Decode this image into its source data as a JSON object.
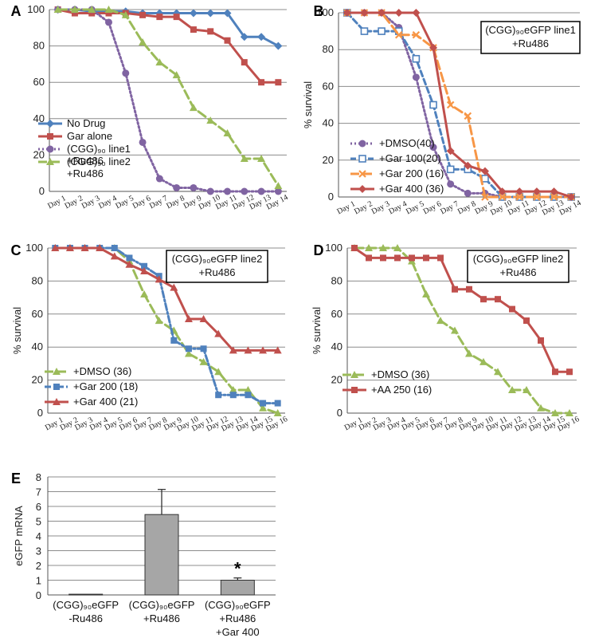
{
  "chart_data": [
    {
      "panel": "A",
      "type": "line",
      "x": [
        "Day 1",
        "Day 2",
        "Day 3",
        "Day 4",
        "Day 5",
        "Day 6",
        "Day 7",
        "Day 8",
        "Day 9",
        "Day 10",
        "Day 11",
        "Day 12",
        "Day 13",
        "Day 14"
      ],
      "ylabel": "",
      "ylim": [
        0,
        100
      ],
      "yticks": [
        0,
        20,
        40,
        60,
        80,
        100
      ],
      "grid": true,
      "legend": "bottom-left",
      "series": [
        {
          "name": "No Drug",
          "color": "#4f81bd",
          "dash": "solid",
          "marker": "diamond",
          "values": [
            100,
            100,
            99,
            99,
            99,
            98,
            98,
            98,
            98,
            98,
            98,
            85,
            85,
            80
          ]
        },
        {
          "name": "Gar alone",
          "color": "#c0504d",
          "dash": "solid",
          "marker": "square",
          "values": [
            100,
            98,
            98,
            98,
            98,
            97,
            96,
            96,
            89,
            88,
            83,
            71,
            60,
            60
          ]
        },
        {
          "name": "(CGG)₉₀ line1 +Ru486",
          "color": "#8064a2",
          "dash": "dot",
          "marker": "circle",
          "values": [
            100,
            100,
            100,
            93,
            65,
            27,
            7,
            2,
            2,
            0,
            0,
            0,
            0,
            0
          ]
        },
        {
          "name": "(CGG)₉₀ line2 +Ru486",
          "color": "#9bbb59",
          "dash": "longdash",
          "marker": "triangle",
          "values": [
            100,
            100,
            100,
            100,
            97,
            82,
            71,
            64,
            46,
            39,
            32,
            18,
            18,
            3
          ]
        }
      ]
    },
    {
      "panel": "B",
      "type": "line",
      "x": [
        "Day 1",
        "Day 2",
        "Day 3",
        "Day 4",
        "Day 5",
        "Day 6",
        "Day 7",
        "Day 8",
        "Day 9",
        "Day 10",
        "Day 11",
        "Day 12",
        "Day 13",
        "Day 14"
      ],
      "ylabel": "% survival",
      "ylim": [
        0,
        100
      ],
      "yticks": [
        0,
        20,
        40,
        60,
        80,
        100
      ],
      "grid": true,
      "legend": "bottom-left",
      "annotation": [
        "(CGG)₉₀eGFP line1",
        "+Ru486"
      ],
      "series": [
        {
          "name": "+DMSO(40)",
          "color": "#8064a2",
          "dash": "dot",
          "marker": "circle",
          "values": [
            100,
            100,
            100,
            92,
            65,
            27,
            7,
            2,
            2,
            0,
            0,
            0,
            0,
            0
          ]
        },
        {
          "name": "+Gar 100(20)",
          "color": "#4f81bd",
          "dash": "dash",
          "marker": "square-open",
          "values": [
            100,
            90,
            90,
            90,
            75,
            50,
            15,
            15,
            10,
            0,
            0,
            0,
            0,
            0
          ]
        },
        {
          "name": "+Gar 200 (16)",
          "color": "#f79646",
          "dash": "longdash",
          "marker": "x",
          "values": [
            100,
            100,
            100,
            88,
            88,
            81,
            50,
            44,
            0,
            0,
            0,
            0,
            0,
            0
          ]
        },
        {
          "name": "+Gar 400 (36)",
          "color": "#c0504d",
          "dash": "solid",
          "marker": "diamond",
          "values": [
            100,
            100,
            100,
            100,
            100,
            81,
            25,
            17,
            14,
            3,
            3,
            3,
            3,
            0
          ]
        }
      ]
    },
    {
      "panel": "C",
      "type": "line",
      "x": [
        "Day 1",
        "Day 2",
        "Day 3",
        "Day 4",
        "Day 5",
        "Day 6",
        "Day 7",
        "Day 8",
        "Day 9",
        "Day 10",
        "Day 11",
        "Day 12",
        "Day 13",
        "Day 14",
        "Day 15",
        "Day 16"
      ],
      "ylabel": "% survival",
      "ylim": [
        0,
        100
      ],
      "yticks": [
        0,
        20,
        40,
        60,
        80,
        100
      ],
      "grid": true,
      "legend": "bottom-left",
      "annotation": [
        "(CGG)₉₀eGFP line2",
        "+Ru486"
      ],
      "series": [
        {
          "name": "+DMSO (36)",
          "color": "#9bbb59",
          "dash": "longdash",
          "marker": "triangle",
          "values": [
            100,
            100,
            100,
            100,
            100,
            92,
            72,
            56,
            50,
            36,
            31,
            25,
            14,
            14,
            3,
            0
          ]
        },
        {
          "name": "+Gar 200 (18)",
          "color": "#4f81bd",
          "dash": "dashdot",
          "marker": "square",
          "values": [
            100,
            100,
            100,
            100,
            100,
            94,
            89,
            83,
            44,
            39,
            39,
            11,
            11,
            11,
            6,
            6
          ]
        },
        {
          "name": "+Gar 400 (21)",
          "color": "#c0504d",
          "dash": "solid",
          "marker": "triangle",
          "values": [
            100,
            100,
            100,
            100,
            95,
            90,
            86,
            81,
            76,
            57,
            57,
            48,
            38,
            38,
            38,
            38
          ]
        }
      ]
    },
    {
      "panel": "D",
      "type": "line",
      "x": [
        "Day 1",
        "Day 2",
        "Day 3",
        "Day 4",
        "Day 5",
        "Day 6",
        "Day 7",
        "Day 8",
        "Day 9",
        "Day 10",
        "Day 11",
        "Day 12",
        "Day 13",
        "Day 14",
        "Day 15",
        "Day 16"
      ],
      "ylabel": "% survival",
      "ylim": [
        0,
        100
      ],
      "yticks": [
        0,
        20,
        40,
        60,
        80,
        100
      ],
      "grid": true,
      "legend": "bottom-left",
      "annotation": [
        "(CGG)₉₀eGFP line2",
        "+Ru486"
      ],
      "series": [
        {
          "name": "+DMSO (36)",
          "color": "#9bbb59",
          "dash": "longdash",
          "marker": "triangle",
          "values": [
            100,
            100,
            100,
            100,
            92,
            72,
            56,
            50,
            36,
            31,
            25,
            14,
            14,
            3,
            0,
            0
          ]
        },
        {
          "name": "+AA 250 (16)",
          "color": "#c0504d",
          "dash": "solid",
          "marker": "square",
          "values": [
            100,
            94,
            94,
            94,
            94,
            94,
            94,
            75,
            75,
            69,
            69,
            63,
            56,
            44,
            25,
            25
          ]
        }
      ]
    },
    {
      "panel": "E",
      "type": "bar",
      "categories": [
        [
          "(CGG)₉₀eGFP",
          "-Ru486"
        ],
        [
          "(CGG)₉₀eGFP",
          "+Ru486"
        ],
        [
          "(CGG)₉₀eGFP",
          "+Ru486",
          "+Gar 400"
        ]
      ],
      "values": [
        0.05,
        5.45,
        1.0
      ],
      "errors": [
        0,
        1.7,
        0.15
      ],
      "significance": [
        "",
        "",
        "*"
      ],
      "ylabel": "eGFP mRNA",
      "ylim": [
        0,
        8
      ],
      "yticks": [
        0,
        1,
        2,
        3,
        4,
        5,
        6,
        7,
        8
      ],
      "grid": true,
      "bar_color": "#a6a6a6"
    }
  ]
}
